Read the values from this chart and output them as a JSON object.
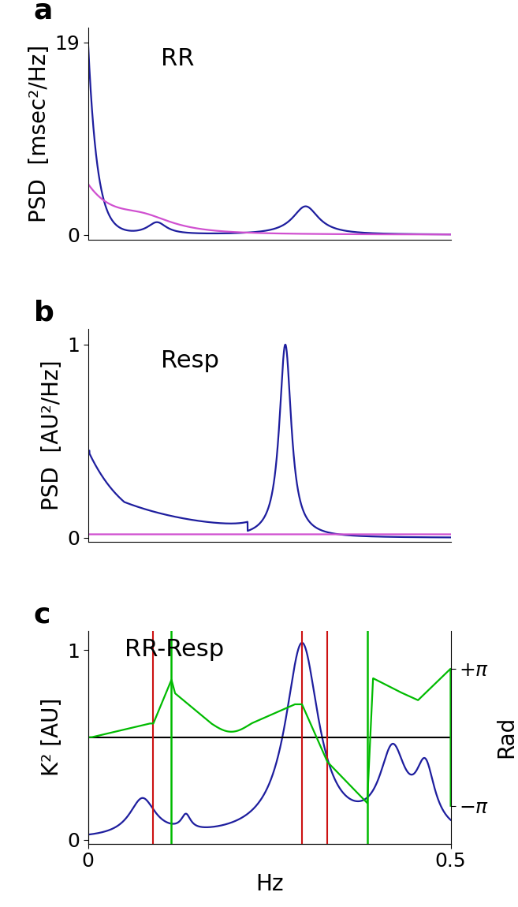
{
  "panel_a_title": "RR",
  "panel_b_title": "Resp",
  "panel_c_title": "RR-Resp",
  "panel_a_ylabel": "PSD  [msec²/Hz]",
  "panel_b_ylabel": "PSD  [AU²/Hz]",
  "panel_c_ylabel": "K² [AU]",
  "panel_c_ylabel_right": "Rad",
  "xlabel": "Hz",
  "panel_a_ytick_vals": [
    0,
    19
  ],
  "panel_a_ytick_labels": [
    "0",
    "19"
  ],
  "panel_b_ytick_vals": [
    0,
    1
  ],
  "panel_b_ytick_labels": [
    "0",
    "1"
  ],
  "panel_c_ytick_vals": [
    0,
    1
  ],
  "panel_c_ytick_labels": [
    "0",
    "1"
  ],
  "xlim": [
    0,
    0.5
  ],
  "xtick_vals": [
    0,
    0.5
  ],
  "xtick_labels": [
    "0",
    "0.5"
  ],
  "blue_color": "#1e1e9e",
  "pink_color": "#d050d0",
  "green_color": "#00bb00",
  "red_line_color": "#cc1111",
  "black_color": "#000000",
  "bg_color": "#ffffff",
  "red_vlines_c": [
    0.09,
    0.295,
    0.33
  ],
  "green_vlines_c": [
    0.115,
    0.385
  ],
  "figsize": [
    6.57,
    11.5
  ],
  "dpi": 100,
  "label_fontsize": 20,
  "tick_fontsize": 18,
  "title_fontsize": 22,
  "panel_label_fontsize": 26
}
